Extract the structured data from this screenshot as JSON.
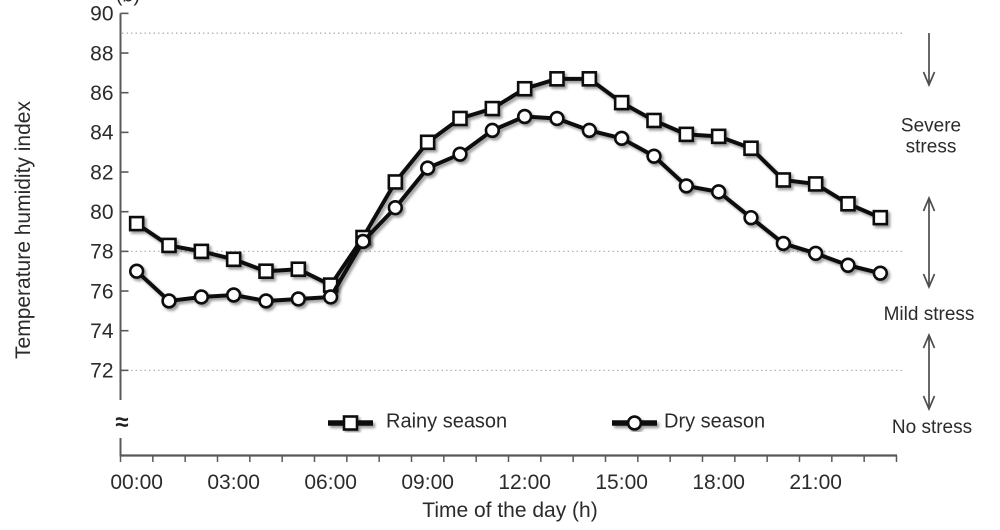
{
  "figure": {
    "panel_label": "(b)",
    "axis_break_symbol": "≈"
  },
  "chart_data": {
    "type": "line",
    "title": "",
    "xlabel": "Time of the day (h)",
    "ylabel": "Temperature humidity index",
    "x_categories": [
      "00:00",
      "01:00",
      "02:00",
      "03:00",
      "04:00",
      "05:00",
      "06:00",
      "07:00",
      "08:00",
      "09:00",
      "10:00",
      "11:00",
      "12:00",
      "13:00",
      "14:00",
      "15:00",
      "16:00",
      "17:00",
      "18:00",
      "19:00",
      "20:00",
      "21:00",
      "22:00",
      "23:00"
    ],
    "x_tick_hours": [
      0,
      3,
      6,
      9,
      12,
      15,
      18,
      21
    ],
    "x_tick_labels": [
      "00:00",
      "03:00",
      "06:00",
      "09:00",
      "12:00",
      "15:00",
      "18:00",
      "21:00"
    ],
    "y_ticks": [
      72,
      74,
      76,
      78,
      80,
      82,
      84,
      86,
      88,
      90
    ],
    "ylim": [
      72,
      90
    ],
    "y_axis_break": true,
    "grid": "horizontal dotted threshold lines only",
    "threshold_gridlines": [
      89,
      78,
      72
    ],
    "legend_position": "bottom-inside",
    "series": [
      {
        "name": "Rainy season",
        "marker": "square",
        "color": "#111111",
        "values": [
          79.4,
          78.3,
          78.0,
          77.6,
          77.0,
          77.1,
          76.3,
          78.7,
          81.5,
          83.5,
          84.7,
          85.2,
          86.2,
          86.7,
          86.7,
          85.5,
          84.6,
          83.9,
          83.8,
          83.2,
          81.6,
          81.4,
          80.4,
          79.7
        ]
      },
      {
        "name": "Dry season",
        "marker": "circle",
        "color": "#111111",
        "values": [
          77.0,
          75.5,
          75.7,
          75.8,
          75.5,
          75.6,
          75.7,
          78.5,
          80.2,
          82.2,
          82.9,
          84.1,
          84.8,
          84.7,
          84.1,
          83.7,
          82.8,
          81.3,
          81.0,
          79.7,
          78.4,
          77.9,
          77.3,
          76.9
        ]
      }
    ],
    "stress_annotations": [
      {
        "label": "Severe stress"
      },
      {
        "label": "Mild stress"
      },
      {
        "label": "No stress"
      }
    ],
    "colors": {
      "line": "#111111",
      "marker_fill": "#ffffff",
      "axis": "#595959",
      "gridline": "#b3b3b3",
      "text": "#2b2b2b",
      "arrow": "#4d4d4d"
    }
  }
}
